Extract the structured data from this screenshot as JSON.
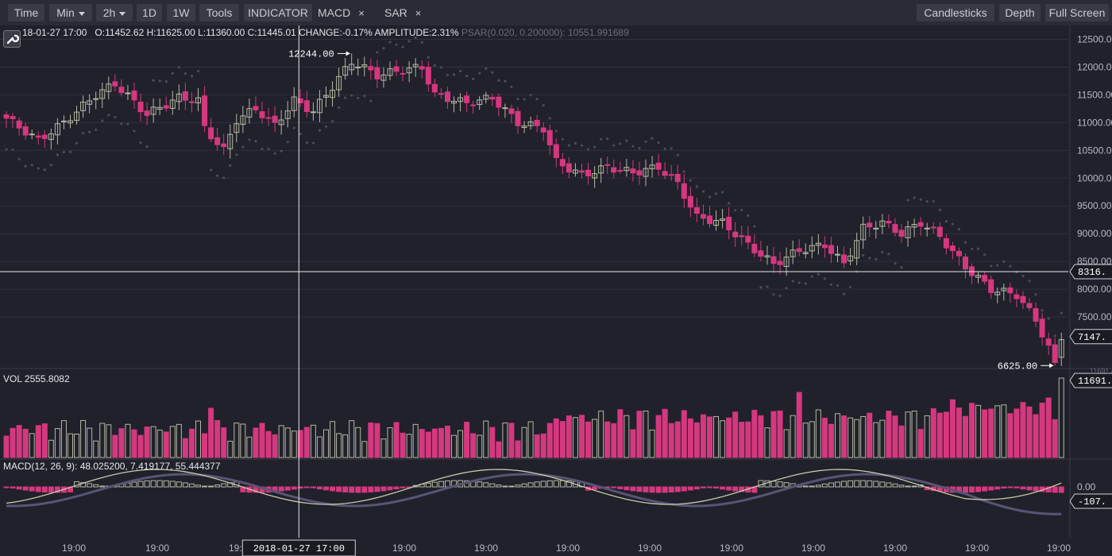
{
  "toolbar": {
    "time": "Time",
    "min": "Min",
    "interval": "2h",
    "d1": "1D",
    "w1": "1W",
    "tools": "Tools",
    "indicator": "INDICATOR",
    "macd": "MACD",
    "sar": "SAR",
    "close_glyph": "×",
    "candlesticks": "Candlesticks",
    "depth": "Depth",
    "fullscreen": "Full Screen"
  },
  "ohlc_info": {
    "date": "18-01-27 17:00",
    "open": "O:11452.62",
    "high": "H:11625.00",
    "low": "L:11360.00",
    "close": "C:11445.01",
    "change": "CHANGE:-0.17%",
    "amplitude": "AMPLITUDE:2.31%",
    "psar": "PSAR(0.020, 0.200000): 10551.991689"
  },
  "vol_info": "VOL 2555.8082",
  "macd_info": "MACD(12, 26, 9): 48.025200, 7.419177, 55.444377",
  "colors": {
    "background": "#20212b",
    "up": "#b5b8a3",
    "down": "#d5387e",
    "grid": "#2f313c",
    "psar": "#4a4c58",
    "dif": "#c8caa8",
    "dea": "#595476",
    "crosshair": "#e8e8e8"
  },
  "chart_data": {
    "type": "candlestick",
    "price_ticks": [
      "12500.00",
      "12000.00",
      "11500.00",
      "11000.00",
      "10500.00",
      "10000.00",
      "9500.00",
      "9000.00",
      "8500.00",
      "8000.00",
      "7500.00"
    ],
    "ylim": [
      6600,
      12750
    ],
    "x_ticks": [
      "19:00",
      "19:00",
      "19:00",
      "19:00",
      "19:00",
      "19:00",
      "19:00",
      "19:00",
      "19:00",
      "19:00",
      "19:00",
      "19:00",
      "19:00"
    ],
    "crosshair": {
      "date": "2018-01-27 17:00",
      "price": "8316.",
      "index": 46
    },
    "current_price": "7147.",
    "high_marker": {
      "label": "12244.00",
      "value": 12244,
      "index": 54
    },
    "low_marker": {
      "label": "6625.00",
      "value": 6625,
      "index": 164
    },
    "vol_label": "11691.",
    "vol_tick": "11691.4",
    "macd_ticks": {
      "zero": "0.00",
      "current": "-107."
    },
    "anchors": [
      [
        0,
        11080
      ],
      [
        5,
        10680
      ],
      [
        9,
        11000
      ],
      [
        14,
        11500
      ],
      [
        17,
        11700
      ],
      [
        22,
        11150
      ],
      [
        27,
        11450
      ],
      [
        30,
        11400
      ],
      [
        31,
        10900
      ],
      [
        34,
        10500
      ],
      [
        36,
        11050
      ],
      [
        39,
        11250
      ],
      [
        42,
        10950
      ],
      [
        45,
        11400
      ],
      [
        48,
        11200
      ],
      [
        50,
        11500
      ],
      [
        53,
        11950
      ],
      [
        55,
        12050
      ],
      [
        58,
        11850
      ],
      [
        62,
        11950
      ],
      [
        65,
        12000
      ],
      [
        67,
        11500
      ],
      [
        72,
        11350
      ],
      [
        76,
        11450
      ],
      [
        80,
        11000
      ],
      [
        84,
        10900
      ],
      [
        86,
        10300
      ],
      [
        90,
        10050
      ],
      [
        94,
        10200
      ],
      [
        98,
        10100
      ],
      [
        102,
        10200
      ],
      [
        105,
        9900
      ],
      [
        108,
        9300
      ],
      [
        112,
        9200
      ],
      [
        116,
        8800
      ],
      [
        120,
        8450
      ],
      [
        124,
        8700
      ],
      [
        128,
        8800
      ],
      [
        131,
        8450
      ],
      [
        134,
        9100
      ],
      [
        137,
        9200
      ],
      [
        140,
        9000
      ],
      [
        143,
        9200
      ],
      [
        146,
        8950
      ],
      [
        150,
        8400
      ],
      [
        154,
        8000
      ],
      [
        158,
        7900
      ],
      [
        161,
        7450
      ],
      [
        164,
        6700
      ],
      [
        165,
        7147
      ]
    ]
  }
}
